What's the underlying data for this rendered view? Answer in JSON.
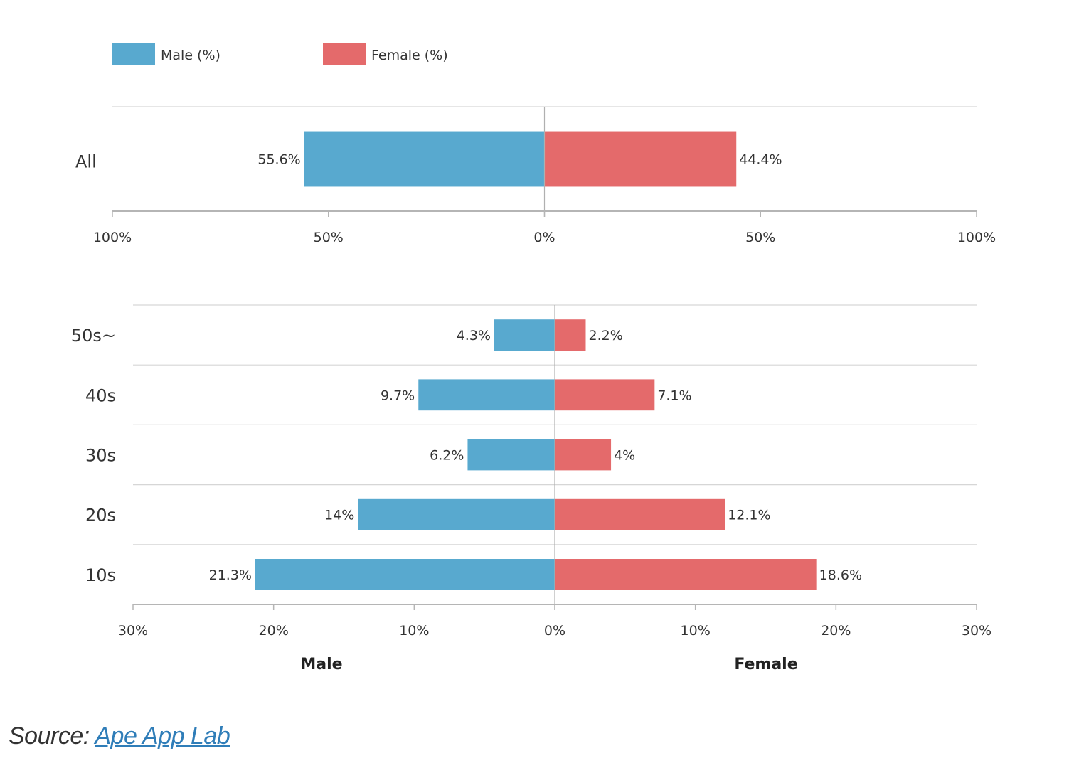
{
  "colors": {
    "male": "#58a9cf",
    "female": "#e46a6b",
    "grid": "#d6d6d6",
    "axis": "#b5b5b5",
    "zero": "#b0b0b0"
  },
  "legend": {
    "male": "Male (%)",
    "female": "Female (%)"
  },
  "source": {
    "prefix": "Source:",
    "link": "Ape App Lab"
  },
  "side_labels": {
    "male": "Male",
    "female": "Female"
  },
  "chart_data": [
    {
      "type": "bar",
      "orientation": "horizontal-diverging",
      "categories": [
        "All"
      ],
      "series": [
        {
          "name": "Male (%)",
          "values": [
            55.6
          ]
        },
        {
          "name": "Female (%)",
          "values": [
            44.4
          ]
        }
      ],
      "value_labels": {
        "male": [
          "55.6%"
        ],
        "female": [
          "44.4%"
        ]
      },
      "xlim": [
        -100,
        100
      ],
      "ticks": [
        "100%",
        "50%",
        "0%",
        "50%",
        "100%"
      ],
      "grid": true,
      "legend": "top-left"
    },
    {
      "type": "bar",
      "orientation": "horizontal-diverging",
      "categories": [
        "50s~",
        "40s",
        "30s",
        "20s",
        "10s"
      ],
      "series": [
        {
          "name": "Male (%)",
          "values": [
            4.3,
            9.7,
            6.2,
            14,
            21.3
          ]
        },
        {
          "name": "Female (%)",
          "values": [
            2.2,
            7.1,
            4,
            12.1,
            18.6
          ]
        }
      ],
      "value_labels": {
        "male": [
          "4.3%",
          "9.7%",
          "6.2%",
          "14%",
          "21.3%"
        ],
        "female": [
          "2.2%",
          "7.1%",
          "4%",
          "12.1%",
          "18.6%"
        ]
      },
      "xlim": [
        -30,
        30
      ],
      "ticks": [
        "30%",
        "20%",
        "10%",
        "0%",
        "10%",
        "20%",
        "30%"
      ],
      "xlabel_left": "Male",
      "xlabel_right": "Female",
      "grid": true
    }
  ]
}
